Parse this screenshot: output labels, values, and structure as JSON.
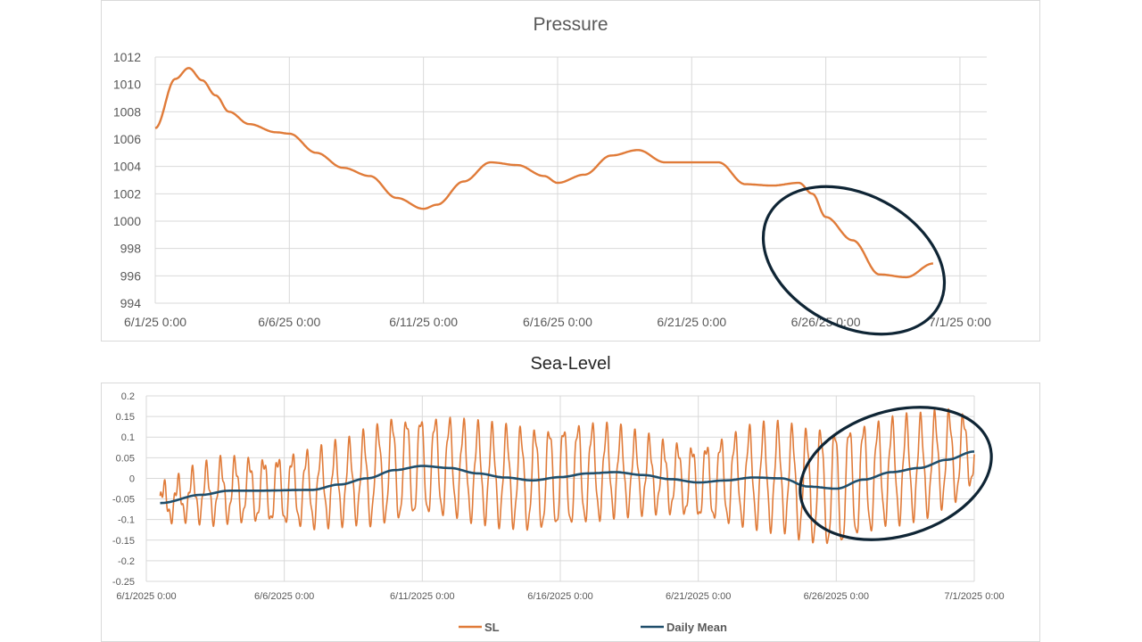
{
  "colors": {
    "pressure_line": "#e07b39",
    "sl_line": "#e07b39",
    "daily_mean_line": "#1f4e6b",
    "annotation_ellipse": "#0f2535",
    "gridline": "#d9d9d9",
    "axis_text": "#595959"
  },
  "chart_data": [
    {
      "type": "line",
      "title": "Pressure",
      "xlabel": "",
      "ylabel": "",
      "ylim": [
        994,
        1012
      ],
      "yticks": [
        994,
        996,
        998,
        1000,
        1002,
        1004,
        1006,
        1008,
        1010,
        1012
      ],
      "xlim": [
        "6/1/25 0:00",
        "7/1/25 0:00"
      ],
      "xticks": [
        "6/1/25 0:00",
        "6/6/25 0:00",
        "6/11/25 0:00",
        "6/16/25 0:00",
        "6/21/25 0:00",
        "6/26/25 0:00",
        "7/1/25 0:00"
      ],
      "grid": true,
      "legend": "none",
      "annotation": "ellipse around the pressure drop after 6/26/25",
      "series": [
        {
          "x": [
            "6/1/25 0:00",
            "6/1/25 18:00",
            "6/2/25 6:00",
            "6/2/25 18:00",
            "6/3/25 6:00",
            "6/3/25 18:00",
            "6/4/25 12:00",
            "6/5/25 12:00",
            "6/6/25 0:00",
            "6/7/25 0:00",
            "6/8/25 0:00",
            "6/9/25 0:00",
            "6/10/25 0:00",
            "6/11/25 0:00",
            "6/11/25 12:00",
            "6/12/25 12:00",
            "6/13/25 12:00",
            "6/14/25 12:00",
            "6/15/25 12:00",
            "6/16/25 0:00",
            "6/17/25 0:00",
            "6/18/25 0:00",
            "6/19/25 0:00",
            "6/20/25 0:00",
            "6/21/25 0:00",
            "6/22/25 0:00",
            "6/23/25 0:00",
            "6/24/25 0:00",
            "6/25/25 0:00",
            "6/25/25 12:00",
            "6/26/25 0:00",
            "6/27/25 0:00",
            "6/28/25 0:00",
            "6/29/25 0:00",
            "6/30/25 0:00"
          ],
          "values": [
            1006.8,
            1010.4,
            1011.2,
            1010.3,
            1009.2,
            1008.0,
            1007.1,
            1006.5,
            1006.4,
            1005.0,
            1003.9,
            1003.3,
            1001.7,
            1000.9,
            1001.2,
            1002.9,
            1004.3,
            1004.1,
            1003.3,
            1002.8,
            1003.4,
            1004.8,
            1005.2,
            1004.3,
            1004.3,
            1004.3,
            1002.7,
            1002.6,
            1002.8,
            1002.0,
            1000.3,
            998.6,
            996.1,
            995.9,
            996.9
          ]
        }
      ]
    },
    {
      "type": "line",
      "title": "Sea-Level",
      "xlabel": "",
      "ylabel": "",
      "ylim": [
        -0.25,
        0.2
      ],
      "yticks": [
        -0.25,
        -0.2,
        -0.15,
        -0.1,
        -0.05,
        0,
        0.05,
        0.1,
        0.15,
        0.2
      ],
      "ytick_labels": [
        "-0.25",
        "-0.2",
        "-0.15",
        "-0.1",
        "-0.05",
        "0",
        "0.05",
        "0.1",
        "0.15",
        "0.2"
      ],
      "xlim": [
        "6/1/2025 0:00",
        "7/1/2025 0:00"
      ],
      "xticks": [
        "6/1/2025 0:00",
        "6/6/2025 0:00",
        "6/11/2025 0:00",
        "6/16/2025 0:00",
        "6/21/2025 0:00",
        "6/26/2025 0:00",
        "7/1/2025 0:00"
      ],
      "grid": true,
      "legend": "bottom",
      "annotation": "ellipse around the rising sea level after 6/26/2025",
      "series": [
        {
          "name": "SL",
          "kind": "semidiurnal tide oscillating about the daily mean",
          "x": [
            "6/1/2025 12:00",
            "6/4/2025 0:00",
            "6/8/2025 0:00",
            "6/10/2025 0:00",
            "6/13/2025 0:00",
            "6/16/2025 0:00",
            "6/20/2025 0:00",
            "6/24/2025 0:00",
            "6/26/2025 0:00",
            "6/28/2025 0:00",
            "6/30/2025 0:00",
            "7/1/2025 0:00"
          ],
          "tidal_amplitude": [
            0.04,
            0.07,
            0.09,
            0.12,
            0.11,
            0.12,
            0.08,
            0.12,
            0.14,
            0.12,
            0.11,
            0.08
          ],
          "period_hours": 12.42,
          "max": 0.18,
          "min": -0.18
        },
        {
          "name": "Daily Mean",
          "x": [
            "6/1/2025 12:00",
            "6/3/2025 0:00",
            "6/4/2025 0:00",
            "6/5/2025 0:00",
            "6/7/2025 0:00",
            "6/8/2025 0:00",
            "6/9/2025 0:00",
            "6/10/2025 0:00",
            "6/11/2025 0:00",
            "6/12/2025 0:00",
            "6/13/2025 0:00",
            "6/14/2025 0:00",
            "6/15/2025 0:00",
            "6/16/2025 0:00",
            "6/17/2025 0:00",
            "6/18/2025 0:00",
            "6/19/2025 0:00",
            "6/20/2025 0:00",
            "6/21/2025 0:00",
            "6/22/2025 0:00",
            "6/23/2025 0:00",
            "6/24/2025 0:00",
            "6/25/2025 0:00",
            "6/26/2025 0:00",
            "6/27/2025 0:00",
            "6/28/2025 0:00",
            "6/29/2025 0:00",
            "6/30/2025 0:00",
            "7/1/2025 0:00"
          ],
          "values": [
            -0.06,
            -0.04,
            -0.03,
            -0.03,
            -0.028,
            -0.015,
            0.0,
            0.02,
            0.03,
            0.025,
            0.012,
            0.002,
            -0.005,
            0.003,
            0.012,
            0.015,
            0.008,
            -0.002,
            -0.01,
            -0.005,
            0.002,
            0.0,
            -0.02,
            -0.025,
            -0.003,
            0.015,
            0.025,
            0.045,
            0.065
          ]
        }
      ]
    }
  ]
}
